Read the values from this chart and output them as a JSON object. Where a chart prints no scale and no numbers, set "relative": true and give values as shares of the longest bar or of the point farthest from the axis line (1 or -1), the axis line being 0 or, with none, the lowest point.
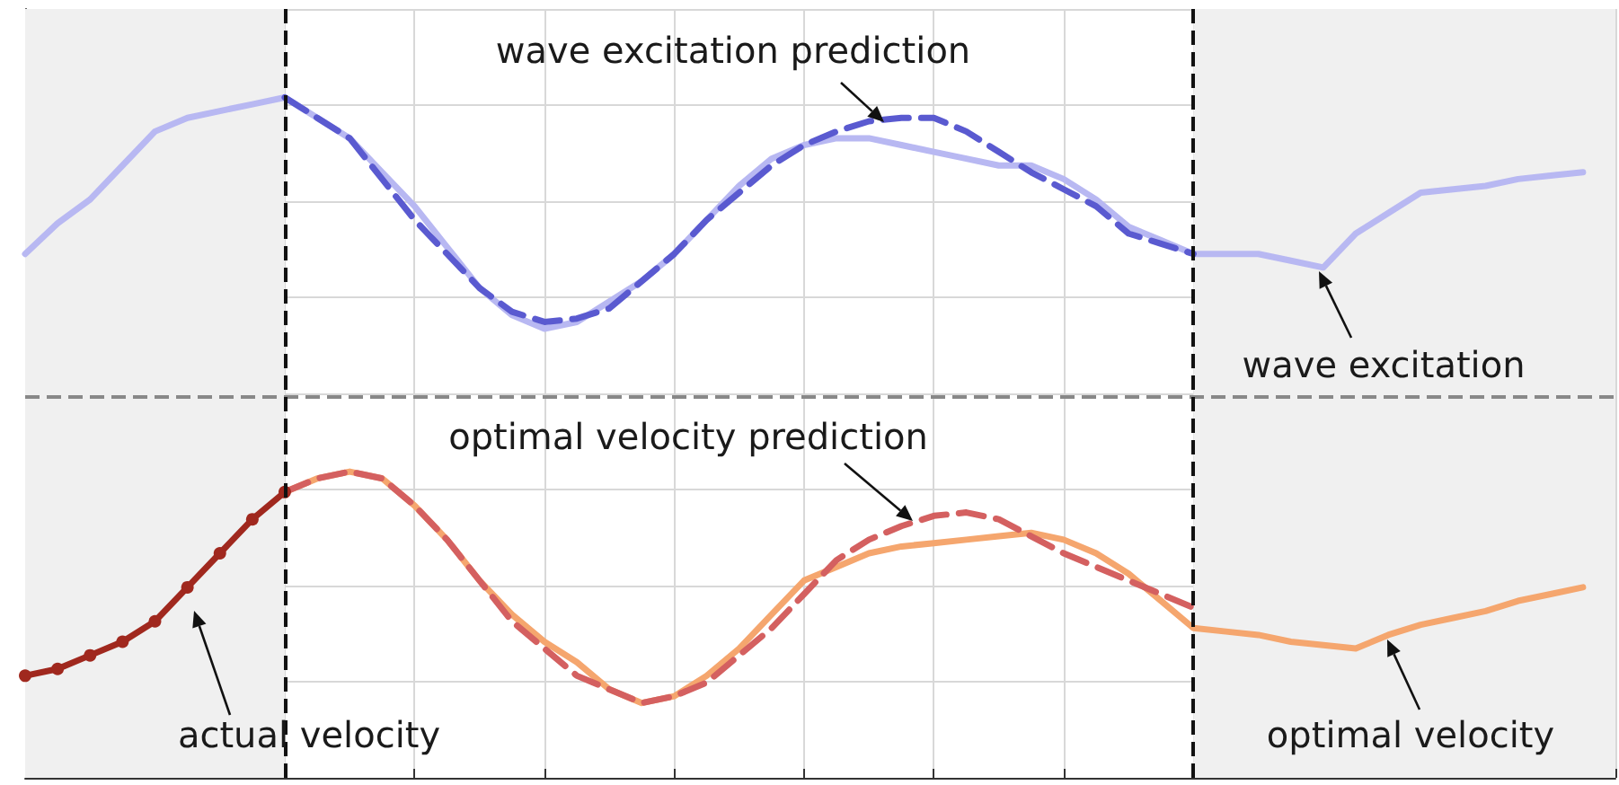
{
  "chart_data": {
    "type": "line",
    "relative": true,
    "tick_labels": false,
    "grid": true,
    "categories": [
      null,
      null,
      null,
      null,
      null,
      null,
      null,
      null,
      null,
      null,
      null,
      null,
      null,
      null,
      null,
      null,
      null,
      null,
      null,
      null,
      null,
      null,
      null,
      null,
      null,
      null,
      null,
      null,
      null,
      null,
      null,
      null,
      null,
      null,
      null,
      null,
      null,
      null,
      null,
      null,
      null,
      null,
      null,
      null,
      null,
      null,
      null,
      null,
      null,
      null
    ],
    "series": [
      {
        "color": "#b8b8f2",
        "values": [
          0.77,
          0.815,
          0.85,
          0.9,
          0.95,
          0.97,
          0.98,
          0.99,
          1,
          0.97,
          0.94,
          0.89,
          0.84,
          0.78,
          0.72,
          0.68,
          0.66,
          0.67,
          0.7,
          0.73,
          0.77,
          0.82,
          0.87,
          0.91,
          0.93,
          0.94,
          0.94,
          0.93,
          0.92,
          0.91,
          0.9,
          0.9,
          0.88,
          0.85,
          0.81,
          0.79,
          0.77,
          0.77,
          0.77,
          0.76,
          0.75,
          0.8,
          0.83,
          0.86,
          0.865,
          0.87,
          0.88,
          0.885,
          0.89,
          null
        ]
      },
      {
        "color": "#5a5ad0",
        "line_style": "dashed",
        "values": [
          null,
          null,
          null,
          null,
          null,
          null,
          null,
          null,
          1,
          0.97,
          0.94,
          0.88,
          0.82,
          0.77,
          0.72,
          0.685,
          0.67,
          0.675,
          0.69,
          0.73,
          0.77,
          0.82,
          0.86,
          0.9,
          0.93,
          0.95,
          0.965,
          0.97,
          0.97,
          0.95,
          0.92,
          0.89,
          0.865,
          0.84,
          0.8,
          0.785,
          0.77,
          null,
          null,
          null,
          null,
          null,
          null,
          null,
          null,
          null,
          null,
          null,
          null,
          null
        ]
      },
      {
        "color": "#f5a66e",
        "values": [
          null,
          null,
          null,
          null,
          null,
          null,
          null,
          null,
          0.42,
          0.44,
          0.45,
          0.44,
          0.4,
          0.35,
          0.29,
          0.24,
          0.2,
          0.17,
          0.13,
          0.11,
          0.12,
          0.15,
          0.19,
          0.24,
          0.29,
          0.31,
          0.33,
          0.34,
          0.345,
          0.35,
          0.355,
          0.36,
          0.35,
          0.33,
          0.3,
          0.26,
          0.22,
          0.215,
          0.21,
          0.2,
          0.195,
          0.19,
          0.21,
          0.225,
          0.235,
          0.245,
          0.26,
          0.27,
          0.28,
          null
        ]
      },
      {
        "color": "#d46060",
        "line_style": "dashed",
        "values": [
          null,
          null,
          null,
          null,
          null,
          null,
          null,
          null,
          0.42,
          0.44,
          0.45,
          0.44,
          0.4,
          0.35,
          0.29,
          0.23,
          0.19,
          0.15,
          0.13,
          0.11,
          0.12,
          0.14,
          0.18,
          0.22,
          0.27,
          0.32,
          0.35,
          0.37,
          0.385,
          0.39,
          0.38,
          0.355,
          0.33,
          0.31,
          0.29,
          0.27,
          0.25,
          null,
          null,
          null,
          null,
          null,
          null,
          null,
          null,
          null,
          null,
          null,
          null,
          null
        ]
      },
      {
        "color": "#a0281e",
        "marker": "circle",
        "values": [
          0.15,
          0.16,
          0.18,
          0.2,
          0.23,
          0.28,
          0.33,
          0.38,
          0.42,
          null,
          null,
          null,
          null,
          null,
          null,
          null,
          null,
          null,
          null,
          null,
          null,
          null,
          null,
          null,
          null,
          null,
          null,
          null,
          null,
          null,
          null,
          null,
          null,
          null,
          null,
          null,
          null,
          null,
          null,
          null,
          null,
          null,
          null,
          null,
          null,
          null,
          null,
          null,
          null,
          null
        ]
      }
    ],
    "ref_lines": [
      {
        "axis": "y",
        "value": 0.56,
        "color": "#888888",
        "line_style": "dashed"
      }
    ],
    "annotations": [
      "wave excitation prediction",
      "wave excitation",
      "optimal velocity prediction",
      "actual velocity",
      "optimal velocity"
    ]
  }
}
